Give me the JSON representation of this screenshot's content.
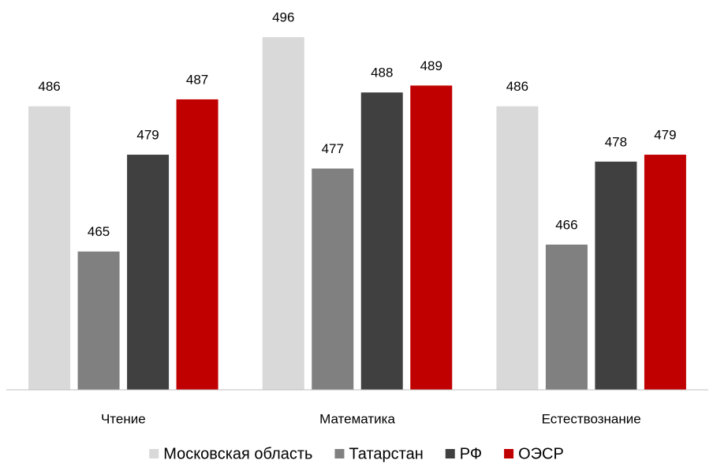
{
  "chart_data": {
    "type": "bar",
    "categories": [
      "Чтение",
      "Математика",
      "Естествознание"
    ],
    "series": [
      {
        "name": "Московская область",
        "color": "#d9d9d9",
        "values": [
          486,
          496,
          486
        ]
      },
      {
        "name": "Татарстан",
        "color": "#808080",
        "values": [
          465,
          477,
          466
        ]
      },
      {
        "name": "РФ",
        "color": "#404040",
        "values": [
          479,
          488,
          478
        ]
      },
      {
        "name": "ОЭСР",
        "color": "#c00000",
        "values": [
          487,
          489,
          479
        ]
      }
    ],
    "ylim": [
      445,
      500
    ]
  }
}
